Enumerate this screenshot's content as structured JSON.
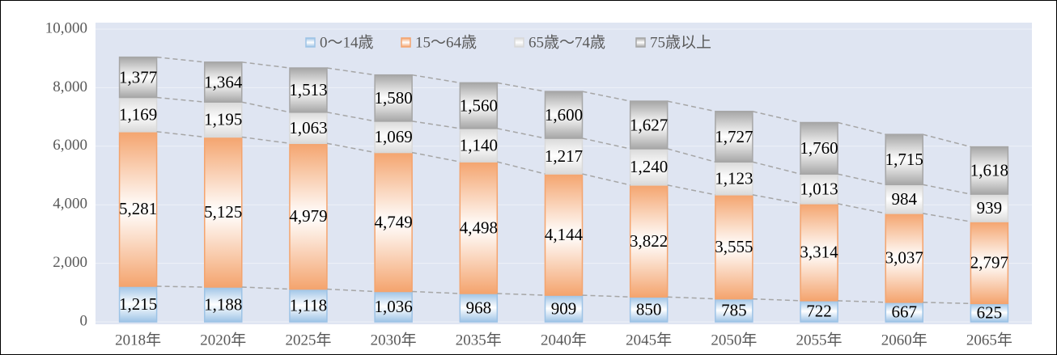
{
  "chart_data": {
    "type": "stacked_bar",
    "categories": [
      "2018年",
      "2020年",
      "2025年",
      "2030年",
      "2035年",
      "2040年",
      "2045年",
      "2050年",
      "2055年",
      "2060年",
      "2065年"
    ],
    "series": [
      {
        "name": "0～14歳",
        "color": "#9dc3e6",
        "values": [
          1215,
          1188,
          1118,
          1036,
          968,
          909,
          850,
          785,
          722,
          667,
          625
        ],
        "value_labels": [
          "1,215",
          "1,188",
          "1,118",
          "1,036",
          "968",
          "909",
          "850",
          "785",
          "722",
          "667",
          "625"
        ]
      },
      {
        "name": "15～64歳",
        "color": "#f4a46e",
        "values": [
          5281,
          5125,
          4979,
          4749,
          4498,
          4144,
          3822,
          3555,
          3314,
          3037,
          2797
        ],
        "value_labels": [
          "5,281",
          "5,125",
          "4,979",
          "4,749",
          "4,498",
          "4,144",
          "3,822",
          "3,555",
          "3,314",
          "3,037",
          "2,797"
        ]
      },
      {
        "name": "65歳～74歳",
        "color": "#d9d9d9",
        "values": [
          1169,
          1195,
          1063,
          1069,
          1140,
          1217,
          1240,
          1123,
          1013,
          984,
          939
        ],
        "value_labels": [
          "1,169",
          "1,195",
          "1,063",
          "1,069",
          "1,140",
          "1,217",
          "1,240",
          "1,123",
          "1,013",
          "984",
          "939"
        ]
      },
      {
        "name": "75歳以上",
        "color": "#a6a6a6",
        "values": [
          1377,
          1364,
          1513,
          1580,
          1560,
          1600,
          1627,
          1727,
          1760,
          1715,
          1618
        ],
        "value_labels": [
          "1,377",
          "1,364",
          "1,513",
          "1,580",
          "1,560",
          "1,600",
          "1,627",
          "1,727",
          "1,760",
          "1,715",
          "1,618"
        ]
      }
    ],
    "ylim": [
      0,
      10000
    ],
    "yticks": [
      0,
      {
        "value": 2000,
        "label": "2,000"
      },
      {
        "value": 4000,
        "label": "4,000"
      },
      {
        "value": 6000,
        "label": "6,000"
      },
      {
        "value": 8000,
        "label": "8,000"
      },
      {
        "value": 10000,
        "label": "10,000"
      }
    ],
    "grid": true,
    "legend": "top"
  }
}
